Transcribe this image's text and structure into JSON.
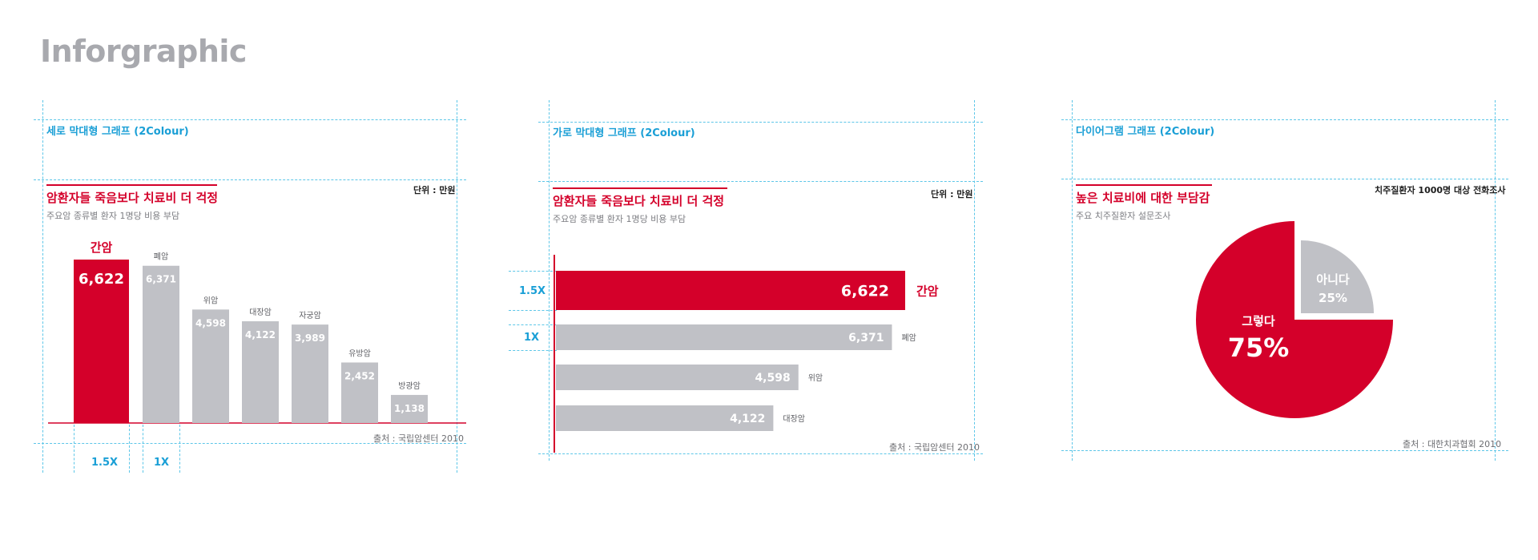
{
  "page_title": "Inforgraphic",
  "colors": {
    "accent": "#d4002a",
    "bar_gray": "#c0c1c6",
    "guide": "#1a9fd6",
    "guide_line": "#5cc6e8"
  },
  "panels": [
    {
      "guide_label": "세로 막대형 그래프 (2Colour)",
      "title": "암환자들 죽음보다 치료비 더 걱정",
      "subtitle": "주요암 종류별 환자 1명당 비용 부담",
      "unit": "단위 : 만원",
      "source": "출처 : 국립암센터 2010",
      "scale_labels": [
        "1.5X",
        "1X"
      ]
    },
    {
      "guide_label": "가로 막대형 그래프 (2Colour)",
      "title": "암환자들 죽음보다 치료비 더 걱정",
      "subtitle": "주요암 종류별 환자 1명당 비용 부담",
      "unit": "단위 : 만원",
      "source": "출처 : 국립암센터 2010",
      "scale_labels": [
        "1.5X",
        "1X"
      ]
    },
    {
      "guide_label": "다이어그램 그래프 (2Colour)",
      "title": "높은 치료비에 대한 부담감",
      "subtitle": "주요 치주질환자 설문조사",
      "unit": "치주질환자 1000명 대상 전화조사",
      "source": "출처 : 대한치과협회 2010"
    }
  ],
  "chart_data": [
    {
      "type": "bar",
      "orientation": "vertical",
      "categories": [
        "간암",
        "폐암",
        "위암",
        "대장암",
        "자궁암",
        "유방암",
        "방광암"
      ],
      "values": [
        6622,
        6371,
        4598,
        4122,
        3989,
        2452,
        1138
      ],
      "value_labels": [
        "6,622",
        "6,371",
        "4,598",
        "4,122",
        "3,989",
        "2,452",
        "1,138"
      ],
      "highlight_index": 0
    },
    {
      "type": "bar",
      "orientation": "horizontal",
      "categories": [
        "간암",
        "폐암",
        "위암",
        "대장암"
      ],
      "values": [
        6622,
        6371,
        4598,
        4122
      ],
      "value_labels": [
        "6,622",
        "6,371",
        "4,598",
        "4,122"
      ],
      "highlight_index": 0
    },
    {
      "type": "pie",
      "slices": [
        {
          "label": "그렇다",
          "value": 75,
          "value_label": "75%",
          "color": "#d4002a"
        },
        {
          "label": "아니다",
          "value": 25,
          "value_label": "25%",
          "color": "#c0c1c6"
        }
      ]
    }
  ]
}
